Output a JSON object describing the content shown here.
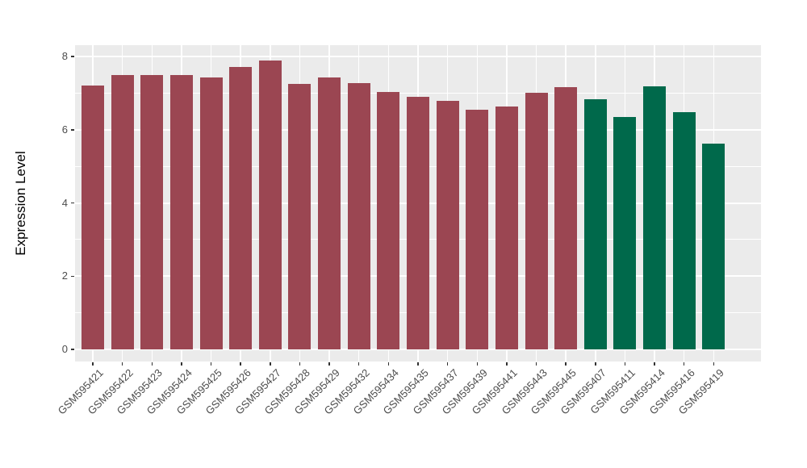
{
  "chart_data": {
    "type": "bar",
    "title": "",
    "xlabel": "",
    "ylabel": "Expression Level",
    "ylim": [
      -0.33,
      8.3
    ],
    "yticks": [
      0,
      2,
      4,
      6,
      8
    ],
    "yticks_minor": [
      1,
      3,
      5,
      7
    ],
    "grid": "on",
    "legend": "none",
    "panel_bg": "#EBEBEB",
    "grid_color": "#FFFFFF",
    "tick_color": "#333333",
    "tick_label_color": "#4D4D4D",
    "categories": [
      "GSM595421",
      "GSM595422",
      "GSM595423",
      "GSM595424",
      "GSM595425",
      "GSM595426",
      "GSM595427",
      "GSM595428",
      "GSM595429",
      "GSM595432",
      "GSM595434",
      "GSM595435",
      "GSM595437",
      "GSM595439",
      "GSM595441",
      "GSM595443",
      "GSM595445",
      "GSM595407",
      "GSM595411",
      "GSM595414",
      "GSM595416",
      "GSM595419"
    ],
    "values": [
      7.2,
      7.5,
      7.5,
      7.5,
      7.43,
      7.72,
      7.89,
      7.25,
      7.43,
      7.27,
      7.04,
      6.9,
      6.78,
      6.54,
      6.63,
      7.0,
      7.16,
      6.83,
      6.34,
      7.18,
      6.48,
      5.62
    ],
    "groups": [
      "group1",
      "group1",
      "group1",
      "group1",
      "group1",
      "group1",
      "group1",
      "group1",
      "group1",
      "group1",
      "group1",
      "group1",
      "group1",
      "group1",
      "group1",
      "group1",
      "group1",
      "group2",
      "group2",
      "group2",
      "group2",
      "group2"
    ],
    "group_colors": {
      "group1": "#9B4652",
      "group2": "#00694B"
    }
  }
}
